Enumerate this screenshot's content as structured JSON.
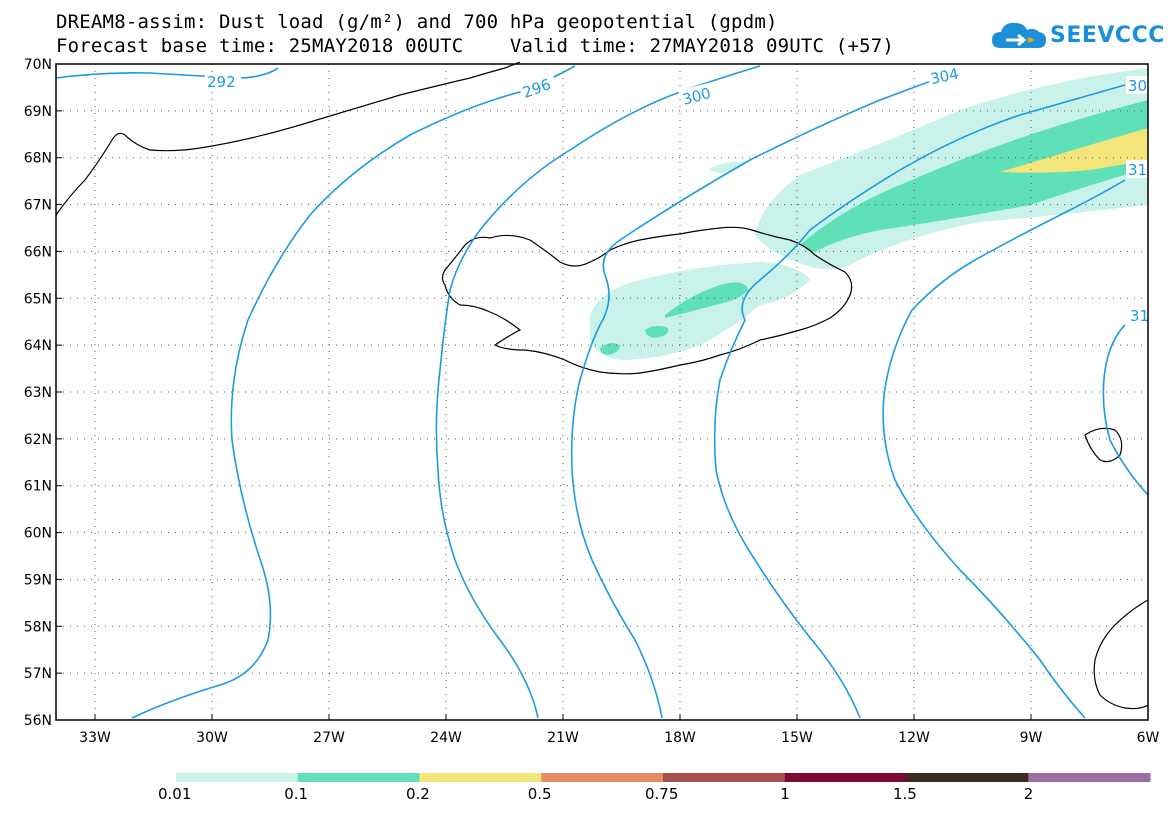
{
  "title_line1": "DREAM8-assim: Dust load (g/m²) and 700 hPa geopotential (gpdm)",
  "title_line2": "Forecast base time: 25MAY2018 00UTC    Valid time: 27MAY2018 09UTC (+57)",
  "logo": {
    "text": "SEEVCCC",
    "icon": "cloud-logo-icon",
    "color": "#1c8fd9"
  },
  "map": {
    "lat_range": [
      56,
      70
    ],
    "lon_range": [
      -34,
      -6
    ],
    "lat_labels": [
      "70N",
      "69N",
      "68N",
      "67N",
      "66N",
      "65N",
      "64N",
      "63N",
      "62N",
      "61N",
      "60N",
      "59N",
      "58N",
      "57N",
      "56N"
    ],
    "lon_labels": [
      "33W",
      "30W",
      "27W",
      "24W",
      "21W",
      "18W",
      "15W",
      "12W",
      "9W",
      "6W"
    ],
    "contour_color": "#1c9be0",
    "contour_labels": [
      "292",
      "296",
      "300",
      "304",
      "30",
      "31",
      "31"
    ],
    "region": "Iceland / North Atlantic"
  },
  "colorbar": {
    "labels": [
      "0.01",
      "0.1",
      "0.2",
      "0.5",
      "0.75",
      "1",
      "1.5",
      "2"
    ],
    "colors": [
      "#c8f2ea",
      "#5fe0b8",
      "#f3e57a",
      "#e58c67",
      "#a5524d",
      "#7d0a35",
      "#3b2a1e",
      "#9b6ea5"
    ]
  }
}
